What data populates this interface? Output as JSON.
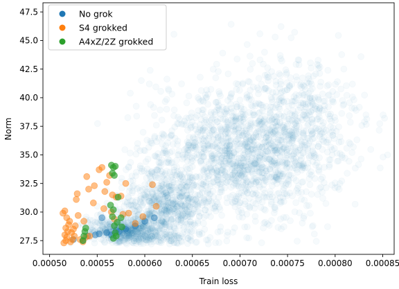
{
  "chart_data": {
    "type": "scatter",
    "xlabel": "Train loss",
    "ylabel": "Norm",
    "xlim": [
      0.000493,
      0.000862
    ],
    "ylim": [
      26.3,
      48.3
    ],
    "xticks": [
      0.0005,
      0.00055,
      0.0006,
      0.00065,
      0.0007,
      0.00075,
      0.0008,
      0.00085
    ],
    "xtick_labels": [
      "0.00050",
      "0.00055",
      "0.00060",
      "0.00065",
      "0.00070",
      "0.00075",
      "0.00080",
      "0.00085"
    ],
    "yticks": [
      27.5,
      30.0,
      32.5,
      35.0,
      37.5,
      40.0,
      42.5,
      45.0,
      47.5
    ],
    "ytick_labels": [
      "27.5",
      "30.0",
      "32.5",
      "35.0",
      "37.5",
      "40.0",
      "42.5",
      "45.0",
      "47.5"
    ],
    "legend_position": "top-left",
    "grid": false,
    "series": [
      {
        "name": "No grok",
        "color": "#1f77b4",
        "opacity": 0.04,
        "note_cloud": true,
        "cloud": {
          "centers": [
            {
              "x": 0.0007,
              "y": 35.0,
              "sx": 4.5e-05,
              "sy": 3.0,
              "n": 1400
            },
            {
              "x": 0.00062,
              "y": 30.5,
              "sx": 2.5e-05,
              "sy": 1.8,
              "n": 700
            },
            {
              "x": 0.00058,
              "y": 28.3,
              "sx": 2e-05,
              "sy": 0.6,
              "n": 500
            },
            {
              "x": 0.00076,
              "y": 38.5,
              "sx": 3.5e-05,
              "sy": 3.0,
              "n": 350
            }
          ]
        },
        "points": [
          {
            "x": 0.000525,
            "y": 27.6
          },
          {
            "x": 0.000535,
            "y": 27.5
          },
          {
            "x": 0.000548,
            "y": 28.0
          },
          {
            "x": 0.000555,
            "y": 29.5
          },
          {
            "x": 0.00056,
            "y": 28.2
          },
          {
            "x": 0.00057,
            "y": 28.4
          },
          {
            "x": 0.000565,
            "y": 28.0
          },
          {
            "x": 0.00058,
            "y": 28.5
          },
          {
            "x": 0.00059,
            "y": 28.8
          },
          {
            "x": 0.0006,
            "y": 29.2
          },
          {
            "x": 0.00061,
            "y": 29.5
          },
          {
            "x": 0.00054,
            "y": 27.9
          },
          {
            "x": 0.000552,
            "y": 28.1
          },
          {
            "x": 0.000573,
            "y": 28.3
          }
        ]
      },
      {
        "name": "S4 grokked",
        "color": "#ff7f0e",
        "opacity": 0.5,
        "points": [
          {
            "x": 0.000515,
            "y": 27.3
          },
          {
            "x": 0.000517,
            "y": 27.5
          },
          {
            "x": 0.000518,
            "y": 27.8
          },
          {
            "x": 0.000516,
            "y": 28.0
          },
          {
            "x": 0.000519,
            "y": 28.3
          },
          {
            "x": 0.000517,
            "y": 28.6
          },
          {
            "x": 0.00052,
            "y": 28.9
          },
          {
            "x": 0.000521,
            "y": 29.2
          },
          {
            "x": 0.000518,
            "y": 29.5
          },
          {
            "x": 0.000522,
            "y": 27.4
          },
          {
            "x": 0.000524,
            "y": 27.6
          },
          {
            "x": 0.000526,
            "y": 27.9
          },
          {
            "x": 0.000523,
            "y": 28.2
          },
          {
            "x": 0.000525,
            "y": 28.5
          },
          {
            "x": 0.000527,
            "y": 28.8
          },
          {
            "x": 0.000516,
            "y": 30.1
          },
          {
            "x": 0.000514,
            "y": 29.9
          },
          {
            "x": 0.00053,
            "y": 29.7
          },
          {
            "x": 0.000528,
            "y": 31.1
          },
          {
            "x": 0.000529,
            "y": 31.6
          },
          {
            "x": 0.000536,
            "y": 29.2
          },
          {
            "x": 0.000539,
            "y": 33.1
          },
          {
            "x": 0.000542,
            "y": 27.9
          },
          {
            "x": 0.000541,
            "y": 32.0
          },
          {
            "x": 0.000546,
            "y": 30.8
          },
          {
            "x": 0.000547,
            "y": 32.3
          },
          {
            "x": 0.000552,
            "y": 33.7
          },
          {
            "x": 0.000555,
            "y": 33.9
          },
          {
            "x": 0.000557,
            "y": 30.3
          },
          {
            "x": 0.000558,
            "y": 31.8
          },
          {
            "x": 0.00056,
            "y": 32.6
          },
          {
            "x": 0.000563,
            "y": 33.2
          },
          {
            "x": 0.000565,
            "y": 30.0
          },
          {
            "x": 0.000566,
            "y": 31.5
          },
          {
            "x": 0.000568,
            "y": 29.4
          },
          {
            "x": 0.00057,
            "y": 31.3
          },
          {
            "x": 0.000575,
            "y": 31.4
          },
          {
            "x": 0.000577,
            "y": 29.8
          },
          {
            "x": 0.00058,
            "y": 32.5
          },
          {
            "x": 0.000583,
            "y": 29.9
          },
          {
            "x": 0.00059,
            "y": 29.0
          },
          {
            "x": 0.000598,
            "y": 29.6
          },
          {
            "x": 0.000608,
            "y": 32.4
          },
          {
            "x": 0.000612,
            "y": 30.5
          },
          {
            "x": 0.000532,
            "y": 27.6
          },
          {
            "x": 0.000538,
            "y": 27.8
          },
          {
            "x": 0.000535,
            "y": 27.4
          }
        ]
      },
      {
        "name": "A4xZ/2Z grokked",
        "color": "#2ca02c",
        "opacity": 0.65,
        "points": [
          {
            "x": 0.000535,
            "y": 27.5
          },
          {
            "x": 0.000536,
            "y": 27.9
          },
          {
            "x": 0.000537,
            "y": 28.3
          },
          {
            "x": 0.000538,
            "y": 28.6
          },
          {
            "x": 0.000565,
            "y": 34.1
          },
          {
            "x": 0.000567,
            "y": 33.9
          },
          {
            "x": 0.000569,
            "y": 34.0
          },
          {
            "x": 0.000566,
            "y": 33.4
          },
          {
            "x": 0.000568,
            "y": 33.2
          },
          {
            "x": 0.000564,
            "y": 30.6
          },
          {
            "x": 0.000567,
            "y": 30.2
          },
          {
            "x": 0.000566,
            "y": 29.6
          },
          {
            "x": 0.000568,
            "y": 28.8
          },
          {
            "x": 0.000569,
            "y": 28.2
          },
          {
            "x": 0.00057,
            "y": 27.9
          },
          {
            "x": 0.000567,
            "y": 27.7
          },
          {
            "x": 0.000571,
            "y": 29.1
          },
          {
            "x": 0.000575,
            "y": 29.5
          },
          {
            "x": 0.000572,
            "y": 31.3
          },
          {
            "x": 0.000576,
            "y": 28.7
          }
        ]
      }
    ]
  }
}
